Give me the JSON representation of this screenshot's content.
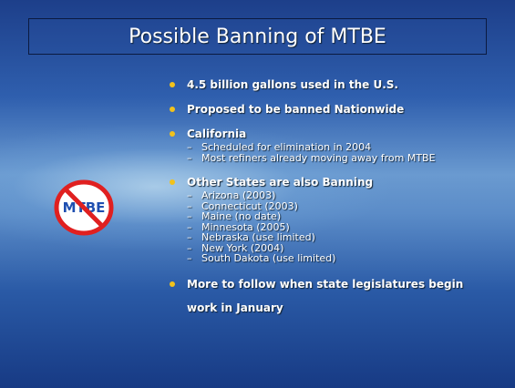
{
  "title": "Possible Banning of MTBE",
  "icon_label": "MTBE",
  "bullets": [
    {
      "text": "4.5 billion gallons used in the U.S.",
      "subs": []
    },
    {
      "text": "Proposed to be banned Nationwide",
      "subs": []
    },
    {
      "text": "California",
      "subs": [
        "Scheduled for elimination in 2004",
        "Most refiners already moving away from MTBE"
      ]
    },
    {
      "text": "Other States are also Banning",
      "subs": [
        "Arizona (2003)",
        "Connecticut (2003)",
        "Maine (no date)",
        "Minnesota (2005)",
        "Nebraska (use limited)",
        "New York (2004)",
        "South Dakota (use limited)"
      ]
    },
    {
      "text": "More to follow when state legislatures begin work in January",
      "subs": []
    }
  ]
}
